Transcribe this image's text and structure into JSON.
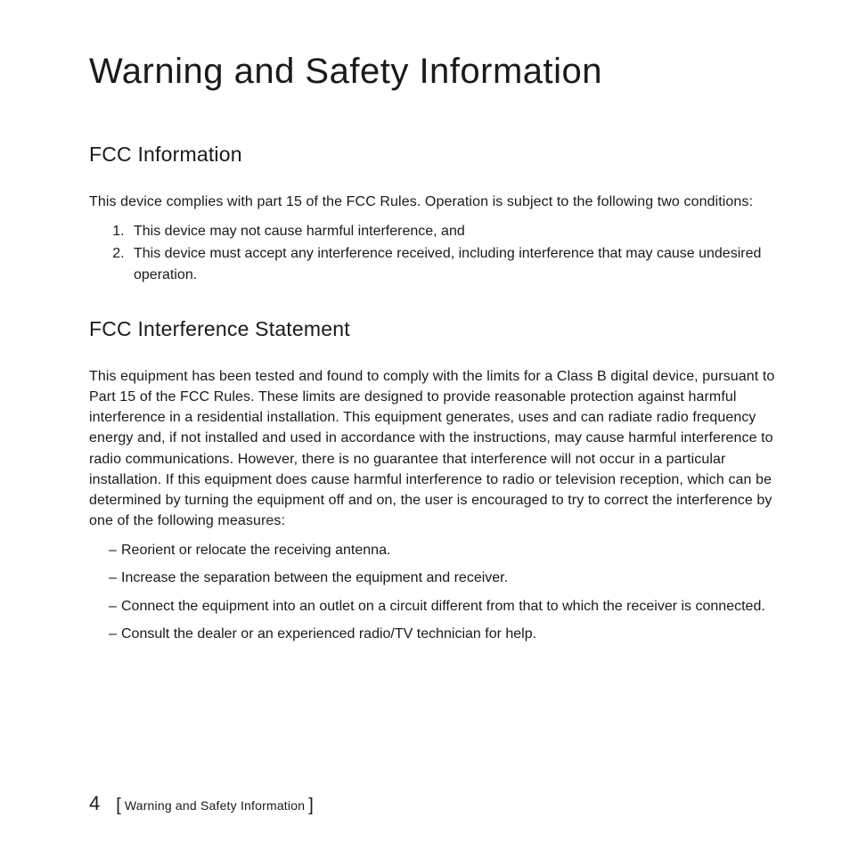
{
  "title": "Warning and Safety Information",
  "section1": {
    "heading": "FCC Information",
    "intro": "This device complies with part 15 of the FCC Rules. Operation is subject to the following two conditions:",
    "items": [
      "This device may not cause harmful interference, and",
      "This device must accept any interference received, including interference that may cause undesired operation."
    ]
  },
  "section2": {
    "heading": "FCC Interference Statement",
    "intro": "This equipment has been tested and found to comply with the limits for a Class B digital device, pursuant to Part 15 of the FCC Rules. These limits are designed to provide reasonable protection against harmful interference in a residential installation. This equipment generates, uses and can radiate radio frequency energy and, if not installed and used in accordance with the instructions, may cause harmful interference to radio communications. However, there is no guarantee that interference will not occur in a particular installation. If this equipment does cause harmful interference to radio or television reception, which can be determined by turning the equipment off and on, the user is encouraged to try to correct the interference by one of the following measures:",
    "items": [
      "Reorient or relocate the receiving antenna.",
      "Increase the separation between the equipment and receiver.",
      "Connect the equipment into an outlet on a circuit different from that to which the receiver is connected.",
      "Consult the dealer or an experienced radio/TV technician for help."
    ]
  },
  "footer": {
    "page_number": "4",
    "section_label": "Warning and Safety Information"
  },
  "colors": {
    "text": "#1a1a1a",
    "background": "#ffffff"
  },
  "typography": {
    "title_fontsize": 40,
    "heading_fontsize": 23,
    "body_fontsize": 16,
    "footer_pagenum_fontsize": 22,
    "footer_label_fontsize": 14
  }
}
